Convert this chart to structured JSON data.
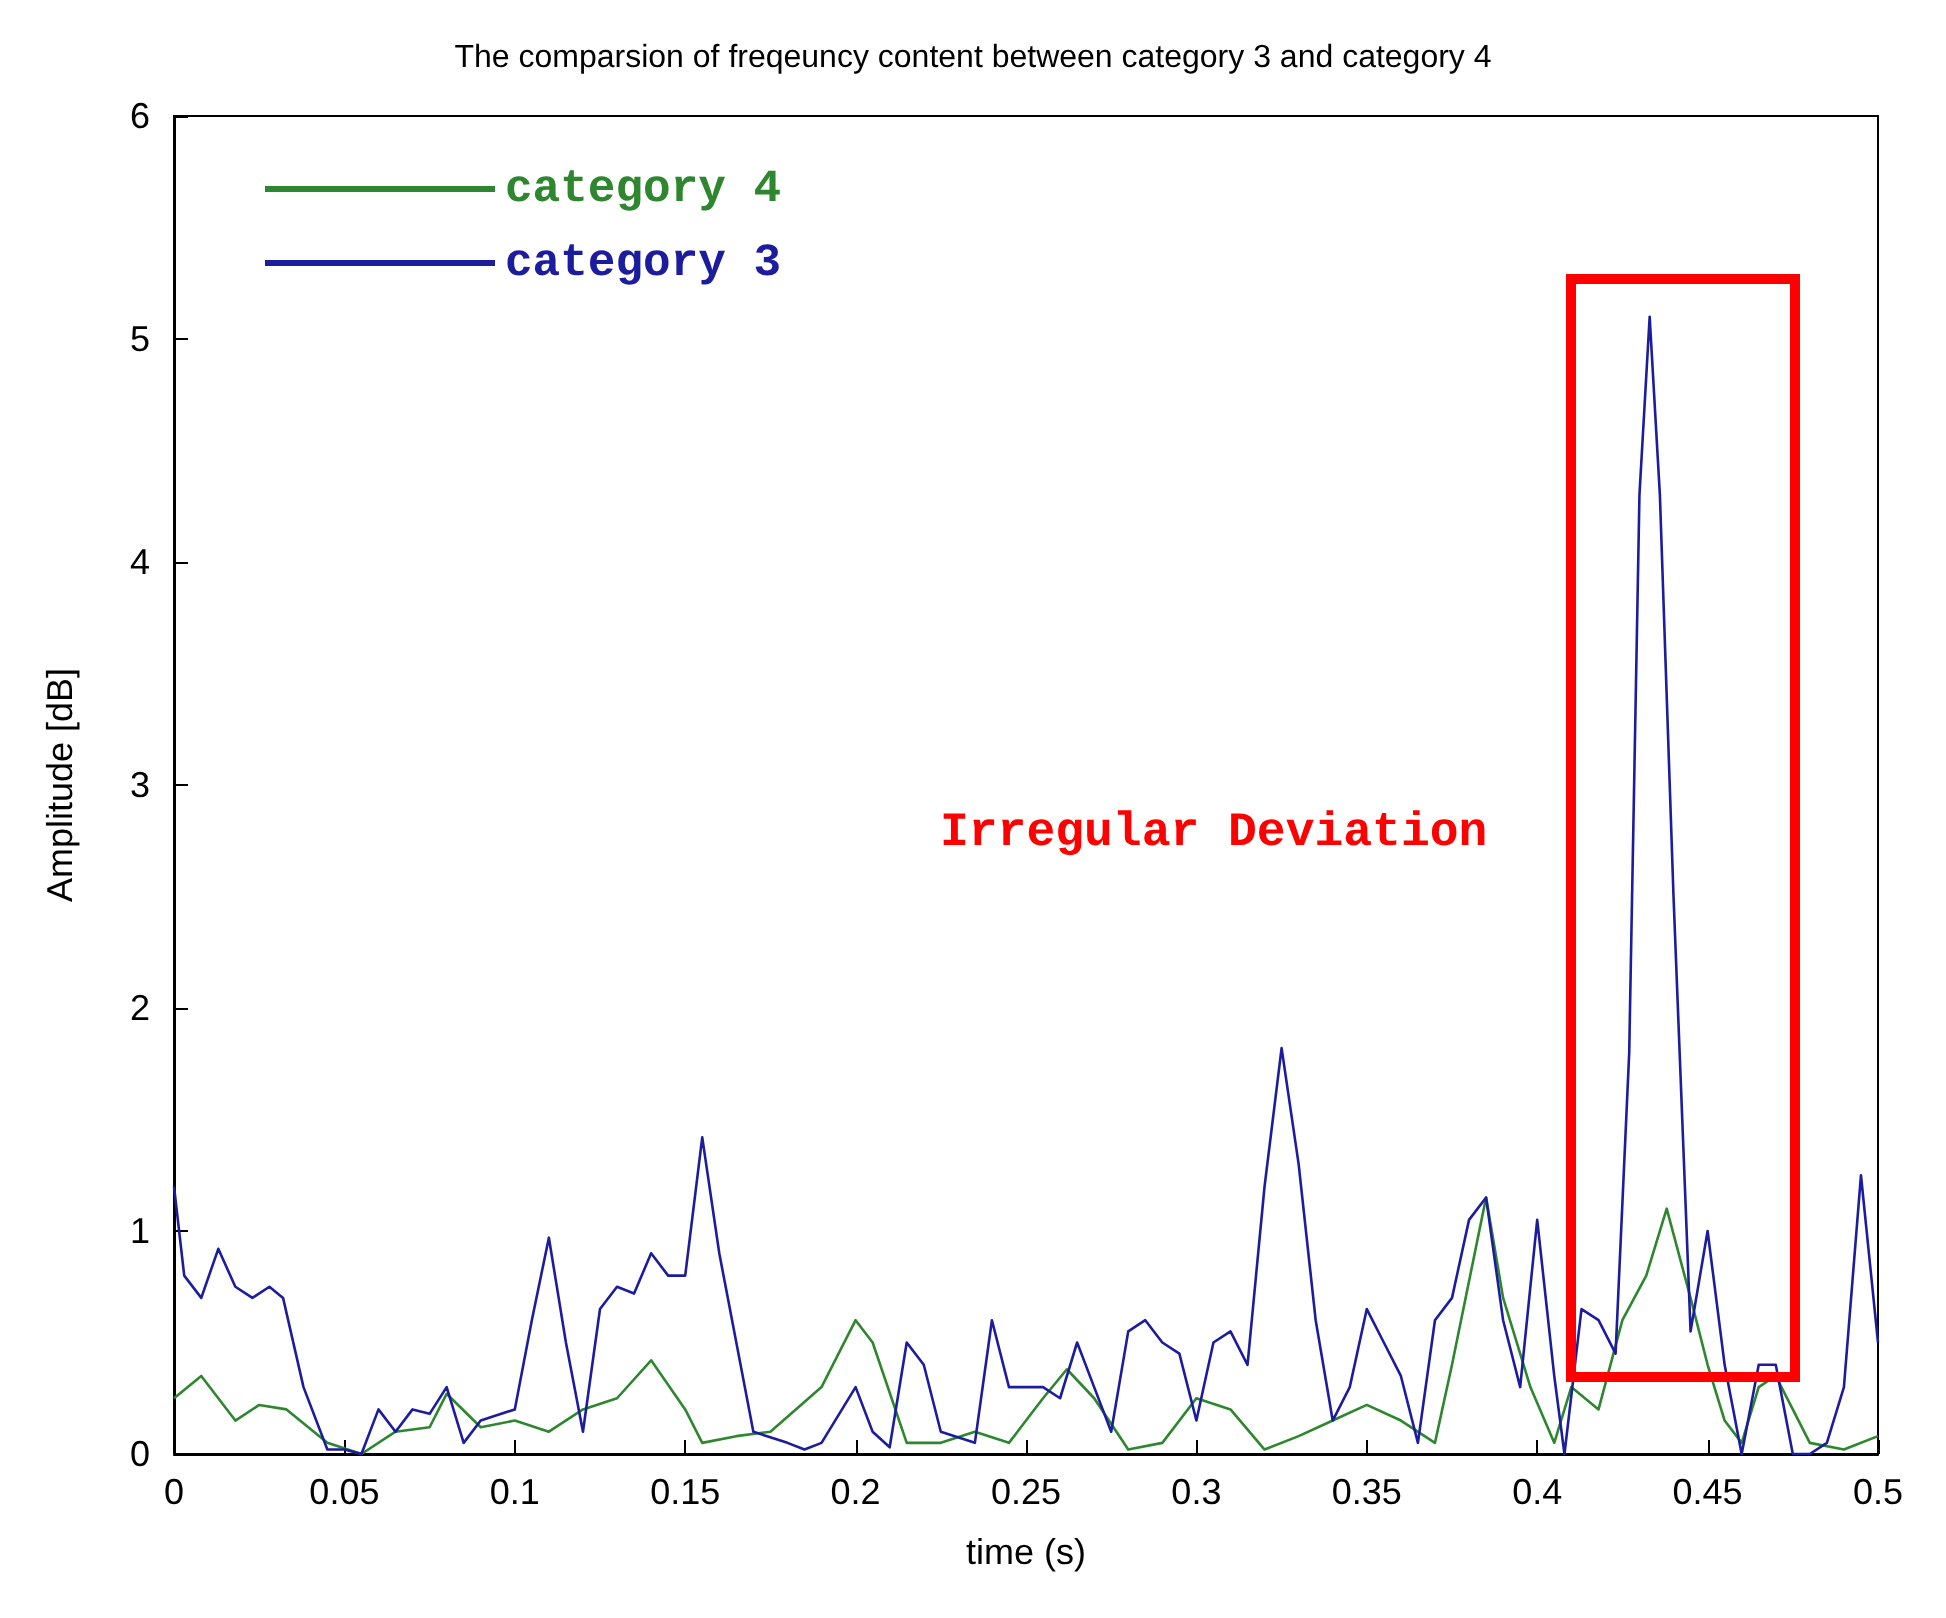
{
  "chart_data": {
    "type": "line",
    "title": "The comparsion of freqeuncy content between category 3 and category 4",
    "xlabel": "time (s)",
    "ylabel": "Amplitude [dB]",
    "xlim": [
      0,
      0.5
    ],
    "xticks": [
      0,
      0.05,
      0.1,
      0.15,
      0.2,
      0.25,
      0.3,
      0.35,
      0.4,
      0.45,
      0.5
    ],
    "ylim": [
      0,
      6
    ],
    "yticks": [
      0,
      1,
      2,
      3,
      4,
      5,
      6
    ],
    "grid": false,
    "legend": "top left",
    "marker": "none",
    "line_style": "solid",
    "annotations": [
      "Irregular Deviation"
    ],
    "series": [
      {
        "name": "category 4",
        "color": "#2e862e",
        "x": [
          0,
          0.008,
          0.018,
          0.025,
          0.033,
          0.045,
          0.055,
          0.065,
          0.075,
          0.08,
          0.09,
          0.1,
          0.11,
          0.12,
          0.13,
          0.14,
          0.15,
          0.155,
          0.165,
          0.175,
          0.19,
          0.2,
          0.205,
          0.215,
          0.225,
          0.235,
          0.245,
          0.255,
          0.262,
          0.27,
          0.28,
          0.29,
          0.3,
          0.31,
          0.32,
          0.33,
          0.34,
          0.35,
          0.36,
          0.37,
          0.375,
          0.385,
          0.39,
          0.398,
          0.405,
          0.41,
          0.418,
          0.425,
          0.432,
          0.438,
          0.445,
          0.45,
          0.455,
          0.46,
          0.465,
          0.47,
          0.475,
          0.48,
          0.49,
          0.5
        ],
        "values": [
          0.25,
          0.35,
          0.15,
          0.22,
          0.2,
          0.05,
          0,
          0.1,
          0.12,
          0.27,
          0.12,
          0.15,
          0.1,
          0.2,
          0.25,
          0.42,
          0.2,
          0.05,
          0.08,
          0.1,
          0.3,
          0.6,
          0.5,
          0.05,
          0.05,
          0.1,
          0.05,
          0.25,
          0.38,
          0.25,
          0.02,
          0.05,
          0.25,
          0.2,
          0.02,
          0.08,
          0.15,
          0.22,
          0.15,
          0.05,
          0.4,
          1.15,
          0.7,
          0.3,
          0.05,
          0.3,
          0.2,
          0.6,
          0.8,
          1.1,
          0.7,
          0.4,
          0.15,
          0.05,
          0.3,
          0.35,
          0.2,
          0.05,
          0.02,
          0.08
        ]
      },
      {
        "name": "category 3",
        "color": "#1c1c9e",
        "x": [
          0,
          0.003,
          0.008,
          0.013,
          0.018,
          0.023,
          0.028,
          0.032,
          0.038,
          0.045,
          0.05,
          0.055,
          0.06,
          0.065,
          0.07,
          0.075,
          0.08,
          0.085,
          0.09,
          0.1,
          0.105,
          0.11,
          0.115,
          0.12,
          0.125,
          0.13,
          0.135,
          0.14,
          0.145,
          0.15,
          0.155,
          0.16,
          0.165,
          0.17,
          0.18,
          0.185,
          0.19,
          0.2,
          0.205,
          0.21,
          0.215,
          0.22,
          0.225,
          0.235,
          0.24,
          0.245,
          0.25,
          0.255,
          0.26,
          0.265,
          0.27,
          0.275,
          0.28,
          0.285,
          0.29,
          0.295,
          0.3,
          0.305,
          0.31,
          0.315,
          0.32,
          0.325,
          0.33,
          0.335,
          0.34,
          0.345,
          0.35,
          0.355,
          0.36,
          0.365,
          0.37,
          0.375,
          0.38,
          0.385,
          0.39,
          0.395,
          0.4,
          0.405,
          0.408,
          0.413,
          0.418,
          0.423,
          0.427,
          0.43,
          0.433,
          0.436,
          0.44,
          0.445,
          0.45,
          0.455,
          0.46,
          0.465,
          0.47,
          0.475,
          0.48,
          0.485,
          0.49,
          0.495,
          0.5
        ],
        "values": [
          1.2,
          0.8,
          0.7,
          0.92,
          0.75,
          0.7,
          0.75,
          0.7,
          0.3,
          0.02,
          0.02,
          0,
          0.2,
          0.1,
          0.2,
          0.18,
          0.3,
          0.05,
          0.15,
          0.2,
          0.6,
          0.97,
          0.5,
          0.1,
          0.65,
          0.75,
          0.72,
          0.9,
          0.8,
          0.8,
          1.42,
          0.9,
          0.5,
          0.1,
          0.05,
          0.02,
          0.05,
          0.3,
          0.1,
          0.03,
          0.5,
          0.4,
          0.1,
          0.05,
          0.6,
          0.3,
          0.3,
          0.3,
          0.25,
          0.5,
          0.3,
          0.1,
          0.55,
          0.6,
          0.5,
          0.45,
          0.15,
          0.5,
          0.55,
          0.4,
          1.2,
          1.82,
          1.3,
          0.6,
          0.15,
          0.3,
          0.65,
          0.5,
          0.35,
          0.05,
          0.6,
          0.7,
          1.05,
          1.15,
          0.6,
          0.3,
          1.05,
          0.35,
          0,
          0.65,
          0.6,
          0.45,
          1.8,
          4.3,
          5.1,
          4.3,
          2.5,
          0.55,
          1,
          0.4,
          0,
          0.4,
          0.4,
          0,
          0,
          0.05,
          0.3,
          1.25,
          0.5
        ]
      }
    ]
  }
}
